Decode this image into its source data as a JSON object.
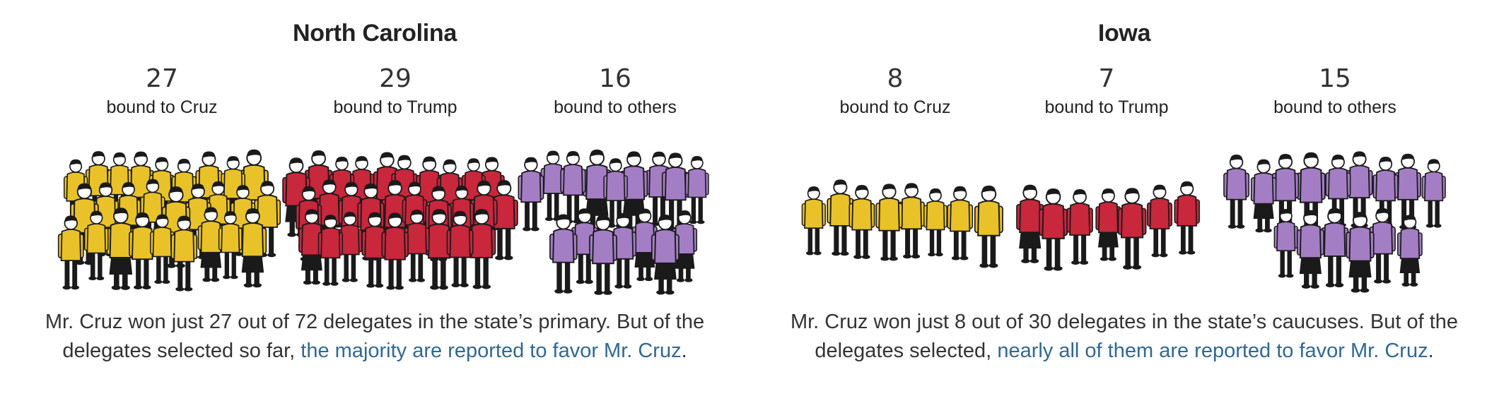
{
  "colors": {
    "cruz": "#e8c228",
    "trump": "#c8273c",
    "others": "#a47ec4",
    "ink": "#1a1a1a",
    "link": "#326891"
  },
  "states": [
    {
      "name": "North Carolina",
      "groups": [
        {
          "count": "27",
          "label": "bound to Cruz",
          "color_key": "cruz",
          "figures": 27
        },
        {
          "count": "29",
          "label": "bound to Trump",
          "color_key": "trump",
          "figures": 29
        },
        {
          "count": "16",
          "label": "bound to others",
          "color_key": "others",
          "figures": 16
        }
      ],
      "caption": {
        "text": "Mr. Cruz won just 27 out of 72 delegates in the state’s primary. But of the delegates selected so far, ",
        "link": "the majority are reported to favor Mr. Cruz",
        "end": "."
      }
    },
    {
      "name": "Iowa",
      "groups": [
        {
          "count": "8",
          "label": "bound to Cruz",
          "color_key": "cruz",
          "figures": 8
        },
        {
          "count": "7",
          "label": "bound to Trump",
          "color_key": "trump",
          "figures": 7
        },
        {
          "count": "15",
          "label": "bound to others",
          "color_key": "others",
          "figures": 15
        }
      ],
      "caption": {
        "text": "Mr. Cruz won just 8 out of 30 delegates in the state’s caucuses. But of the delegates selected, ",
        "link": "nearly all of them are reported to favor Mr. Cruz",
        "end": "."
      }
    }
  ]
}
